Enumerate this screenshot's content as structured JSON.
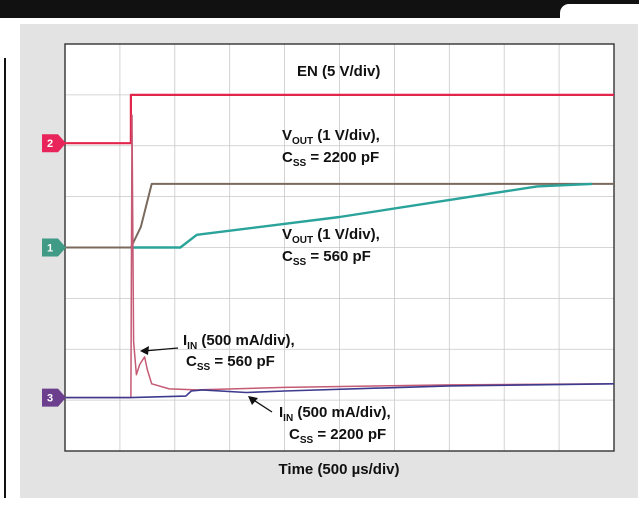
{
  "chart_data": {
    "type": "line",
    "xlabel": "Time (500 µs/div)",
    "x_unit": "div",
    "divisions": {
      "x": 10,
      "y": 8
    },
    "grid": true,
    "channel_markers": [
      {
        "label": "2",
        "color": "#e8245a",
        "y": 6.05
      },
      {
        "label": "1",
        "color": "#3f9a86",
        "y": 4.0
      },
      {
        "label": "3",
        "color": "#6b3f8d",
        "y": 1.05
      }
    ],
    "series": [
      {
        "key": "en",
        "color": "#e2264b",
        "x": [
          0,
          1.2,
          1.2,
          10
        ],
        "y": [
          6.05,
          6.05,
          7.0,
          7.0
        ]
      },
      {
        "key": "vout_2200",
        "color": "#7a6a5e",
        "x": [
          0,
          1.2,
          1.38,
          1.58,
          10
        ],
        "y": [
          4.0,
          4.0,
          4.4,
          5.25,
          5.25
        ]
      },
      {
        "key": "vout_560",
        "color": "#2aa39a",
        "x": [
          1.2,
          2.1,
          2.4,
          5.0,
          8.6,
          9.6
        ],
        "y": [
          4.0,
          4.0,
          4.25,
          4.6,
          5.2,
          5.25
        ]
      },
      {
        "key": "iin_560",
        "color": "#c45a74",
        "x": [
          0,
          1.2,
          1.22,
          1.25,
          1.3,
          1.36,
          1.45,
          1.5,
          1.58,
          1.9,
          2.4,
          4.0,
          7.0,
          10
        ],
        "y": [
          1.05,
          1.05,
          6.6,
          2.15,
          1.5,
          1.7,
          1.85,
          1.6,
          1.32,
          1.22,
          1.2,
          1.25,
          1.3,
          1.32
        ]
      },
      {
        "key": "iin_2200",
        "color": "#3d3b8e",
        "x": [
          0,
          1.2,
          2.2,
          2.3,
          2.5,
          3.3,
          4.0,
          7.0,
          10
        ],
        "y": [
          1.05,
          1.05,
          1.08,
          1.18,
          1.2,
          1.15,
          1.18,
          1.28,
          1.32
        ]
      }
    ],
    "annotations": {
      "en": "EN (5 V/div)",
      "vout_2200": {
        "main": "V",
        "sub": "OUT",
        "rest": " (1 V/div),",
        "line2_main": "C",
        "line2_sub": "SS",
        "line2_rest": " = 2200 pF"
      },
      "vout_560": {
        "main": "V",
        "sub": "OUT",
        "rest": " (1 V/div),",
        "line2_main": "C",
        "line2_sub": "SS",
        "line2_rest": " = 560 pF"
      },
      "iin_560": {
        "main": "I",
        "sub": "IN",
        "rest": " (500 mA/div),",
        "line2_main": "C",
        "line2_sub": "SS",
        "line2_rest": " = 560 pF"
      },
      "iin_2200": {
        "main": "I",
        "sub": "IN",
        "rest": " (500 mA/div),",
        "line2_main": "C",
        "line2_sub": "SS",
        "line2_rest": " = 2200 pF"
      }
    }
  }
}
